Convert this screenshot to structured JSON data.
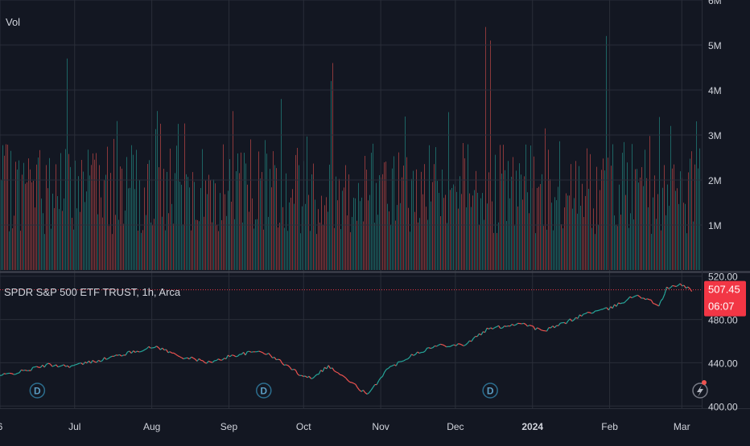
{
  "chart_data": [
    {
      "type": "bar",
      "name": "volume",
      "legend_label": "Vol",
      "y_ticks": [
        {
          "value": 1000000,
          "label": "1M"
        },
        {
          "value": 2000000,
          "label": "2M"
        },
        {
          "value": 3000000,
          "label": "3M"
        },
        {
          "value": 4000000,
          "label": "4M"
        },
        {
          "value": 5000000,
          "label": "5M"
        },
        {
          "value": 6000000,
          "label": "6M"
        }
      ],
      "ylim": [
        0,
        6000000
      ],
      "typical_range": [
        800000,
        2800000
      ],
      "spikes": [
        {
          "date": "2023-06-28",
          "value": 4700000
        },
        {
          "date": "2023-09-22",
          "value": 3800000
        },
        {
          "date": "2023-10-12",
          "value": 4200000
        },
        {
          "date": "2023-10-13",
          "value": 4600000
        },
        {
          "date": "2023-12-13",
          "value": 5400000
        },
        {
          "date": "2023-12-15",
          "value": 5100000
        },
        {
          "date": "2024-01-31",
          "value": 5200000
        },
        {
          "date": "2024-02-21",
          "value": 3400000
        }
      ],
      "grid": true
    },
    {
      "type": "line",
      "name": "price",
      "title": "SPDR S&P 500 ETF TRUST, 1h, Arca",
      "y_ticks": [
        {
          "value": 400,
          "label": "400.00"
        },
        {
          "value": 440,
          "label": "440.00"
        },
        {
          "value": 480,
          "label": "480.00"
        },
        {
          "value": 520,
          "label": "520.00"
        }
      ],
      "ylim": [
        398,
        522
      ],
      "series": [
        {
          "points": [
            [
              "2023-06-01",
              428
            ],
            [
              "2023-06-10",
              432
            ],
            [
              "2023-06-20",
              438
            ],
            [
              "2023-06-30",
              437
            ],
            [
              "2023-07-12",
              443
            ],
            [
              "2023-07-28",
              452
            ],
            [
              "2023-08-03",
              455
            ],
            [
              "2023-08-12",
              446
            ],
            [
              "2023-08-25",
              440
            ],
            [
              "2023-09-01",
              446
            ],
            [
              "2023-09-14",
              451
            ],
            [
              "2023-09-22",
              441
            ],
            [
              "2023-09-29",
              430
            ],
            [
              "2023-10-04",
              426
            ],
            [
              "2023-10-11",
              437
            ],
            [
              "2023-10-20",
              422
            ],
            [
              "2023-10-27",
              410
            ],
            [
              "2023-11-03",
              433
            ],
            [
              "2023-11-14",
              448
            ],
            [
              "2023-11-24",
              456
            ],
            [
              "2023-12-05",
              457
            ],
            [
              "2023-12-14",
              471
            ],
            [
              "2023-12-28",
              477
            ],
            [
              "2024-01-05",
              469
            ],
            [
              "2024-01-12",
              475
            ],
            [
              "2024-01-23",
              486
            ],
            [
              "2024-02-01",
              490
            ],
            [
              "2024-02-12",
              503
            ],
            [
              "2024-02-21",
              493
            ],
            [
              "2024-02-24",
              509
            ],
            [
              "2024-03-01",
              512
            ],
            [
              "2024-03-05",
              507.45
            ]
          ]
        }
      ],
      "last_price": {
        "value": 507.45,
        "label": "507.45",
        "countdown": "06:07"
      },
      "dividend_markers": [
        {
          "date": "2023-06-16",
          "label": "D"
        },
        {
          "date": "2023-09-15",
          "label": "D"
        },
        {
          "date": "2023-12-15",
          "label": "D"
        }
      ],
      "grid": true
    }
  ],
  "time_axis": {
    "x_range": [
      "2023-06-01",
      "2024-03-09"
    ],
    "ticks": [
      {
        "date": "2023-06-01",
        "label": "6",
        "bold": false
      },
      {
        "date": "2023-07-01",
        "label": "Jul",
        "bold": false
      },
      {
        "date": "2023-08-01",
        "label": "Aug",
        "bold": false
      },
      {
        "date": "2023-09-01",
        "label": "Sep",
        "bold": false
      },
      {
        "date": "2023-10-01",
        "label": "Oct",
        "bold": false
      },
      {
        "date": "2023-11-01",
        "label": "Nov",
        "bold": false
      },
      {
        "date": "2023-12-01",
        "label": "Dec",
        "bold": false
      },
      {
        "date": "2024-01-01",
        "label": "2024",
        "bold": true
      },
      {
        "date": "2024-02-01",
        "label": "Feb",
        "bold": false
      },
      {
        "date": "2024-03-01",
        "label": "Mar",
        "bold": false
      }
    ]
  },
  "colors": {
    "background": "#131722",
    "grid": "#2a2e39",
    "up": "#26a69a",
    "down": "#ef5350",
    "text": "#d1d4dc",
    "last_price_label": "#f23645"
  },
  "icons": {
    "dividend": "dividend-icon",
    "events": "lightning-icon"
  }
}
